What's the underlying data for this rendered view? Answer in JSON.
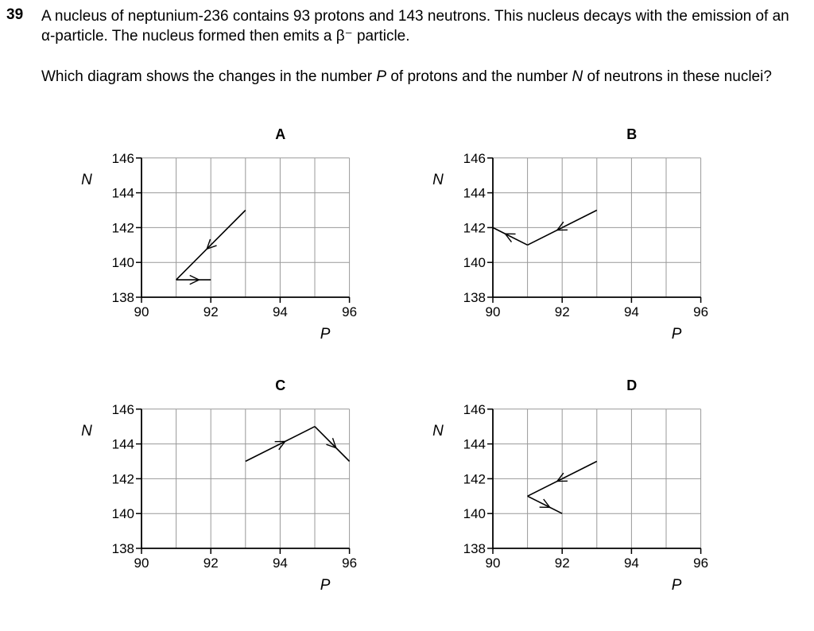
{
  "question": {
    "number": "39",
    "line1": "A nucleus of neptunium-236 contains 93 protons and 143 neutrons. This nucleus decays with the emission of an α-particle. The nucleus formed then emits a β⁻ particle.",
    "line2_pre": "Which diagram shows the changes in the number ",
    "var_p": "P",
    "line2_mid": " of protons and the number ",
    "var_n": "N",
    "line2_post": " of neutrons in these nuclei?"
  },
  "chart_data": [
    {
      "type": "line",
      "label": "A",
      "xlabel": "P",
      "ylabel": "N",
      "xlim": [
        90,
        96
      ],
      "ylim": [
        138,
        146
      ],
      "xticks": [
        90,
        92,
        94,
        96
      ],
      "yticks": [
        138,
        140,
        142,
        144,
        146
      ],
      "grid": true,
      "points": [
        [
          93,
          143
        ],
        [
          91,
          139
        ],
        [
          92,
          139
        ]
      ]
    },
    {
      "type": "line",
      "label": "B",
      "xlabel": "P",
      "ylabel": "N",
      "xlim": [
        90,
        96
      ],
      "ylim": [
        138,
        146
      ],
      "xticks": [
        90,
        92,
        94,
        96
      ],
      "yticks": [
        138,
        140,
        142,
        144,
        146
      ],
      "grid": true,
      "points": [
        [
          93,
          143
        ],
        [
          91,
          141
        ],
        [
          90,
          142
        ]
      ]
    },
    {
      "type": "line",
      "label": "C",
      "xlabel": "P",
      "ylabel": "N",
      "xlim": [
        90,
        96
      ],
      "ylim": [
        138,
        146
      ],
      "xticks": [
        90,
        92,
        94,
        96
      ],
      "yticks": [
        138,
        140,
        142,
        144,
        146
      ],
      "grid": true,
      "points": [
        [
          93,
          143
        ],
        [
          95,
          145
        ],
        [
          96,
          143
        ]
      ]
    },
    {
      "type": "line",
      "label": "D",
      "xlabel": "P",
      "ylabel": "N",
      "xlim": [
        90,
        96
      ],
      "ylim": [
        138,
        146
      ],
      "xticks": [
        90,
        92,
        94,
        96
      ],
      "yticks": [
        138,
        140,
        142,
        144,
        146
      ],
      "grid": true,
      "points": [
        [
          93,
          143
        ],
        [
          91,
          141
        ],
        [
          92,
          140
        ]
      ]
    }
  ]
}
